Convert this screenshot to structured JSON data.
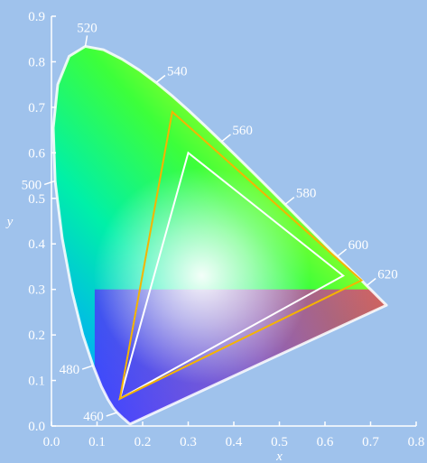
{
  "chart_data": {
    "type": "chromaticity-diagram",
    "xlabel": "x",
    "ylabel": "y",
    "xlim": [
      0.0,
      0.8
    ],
    "ylim": [
      0.0,
      0.9
    ],
    "x_ticks": [
      "0.0",
      "0.1",
      "0.2",
      "0.3",
      "0.4",
      "0.5",
      "0.6",
      "0.7",
      "0.8"
    ],
    "y_ticks": [
      "0.0",
      "0.1",
      "0.2",
      "0.3",
      "0.4",
      "0.5",
      "0.6",
      "0.7",
      "0.8",
      "0.9"
    ],
    "spectral_locus": [
      [
        0.1741,
        0.005
      ],
      [
        0.1738,
        0.0049
      ],
      [
        0.1736,
        0.0049
      ],
      [
        0.1733,
        0.0048
      ],
      [
        0.173,
        0.0048
      ],
      [
        0.1726,
        0.0048
      ],
      [
        0.1721,
        0.0048
      ],
      [
        0.1714,
        0.0051
      ],
      [
        0.1703,
        0.0058
      ],
      [
        0.1689,
        0.0069
      ],
      [
        0.1669,
        0.0086
      ],
      [
        0.1644,
        0.0109
      ],
      [
        0.1611,
        0.0138
      ],
      [
        0.1566,
        0.0177
      ],
      [
        0.151,
        0.0227
      ],
      [
        0.144,
        0.0297
      ],
      [
        0.1355,
        0.0399
      ],
      [
        0.1241,
        0.0578
      ],
      [
        0.1096,
        0.0868
      ],
      [
        0.0913,
        0.1327
      ],
      [
        0.0687,
        0.2007
      ],
      [
        0.0454,
        0.295
      ],
      [
        0.0235,
        0.4127
      ],
      [
        0.0082,
        0.5384
      ],
      [
        0.0039,
        0.6548
      ],
      [
        0.0139,
        0.7502
      ],
      [
        0.0389,
        0.812
      ],
      [
        0.0743,
        0.8338
      ],
      [
        0.1142,
        0.8262
      ],
      [
        0.1547,
        0.8059
      ],
      [
        0.1929,
        0.7816
      ],
      [
        0.2296,
        0.7543
      ],
      [
        0.2658,
        0.7243
      ],
      [
        0.3016,
        0.6923
      ],
      [
        0.3373,
        0.6589
      ],
      [
        0.3731,
        0.6245
      ],
      [
        0.4087,
        0.5896
      ],
      [
        0.4441,
        0.5547
      ],
      [
        0.4788,
        0.5202
      ],
      [
        0.5125,
        0.4866
      ],
      [
        0.5448,
        0.4544
      ],
      [
        0.5752,
        0.4242
      ],
      [
        0.6029,
        0.3965
      ],
      [
        0.627,
        0.3725
      ],
      [
        0.6482,
        0.3514
      ],
      [
        0.6658,
        0.334
      ],
      [
        0.6801,
        0.3197
      ],
      [
        0.6915,
        0.3083
      ],
      [
        0.7006,
        0.2993
      ],
      [
        0.7079,
        0.292
      ],
      [
        0.714,
        0.2859
      ],
      [
        0.719,
        0.2809
      ],
      [
        0.723,
        0.277
      ],
      [
        0.726,
        0.274
      ],
      [
        0.7283,
        0.2717
      ],
      [
        0.73,
        0.27
      ],
      [
        0.7311,
        0.2689
      ],
      [
        0.732,
        0.268
      ],
      [
        0.7327,
        0.2673
      ],
      [
        0.7334,
        0.2666
      ],
      [
        0.734,
        0.266
      ],
      [
        0.7344,
        0.2656
      ],
      [
        0.7346,
        0.2654
      ],
      [
        0.7347,
        0.2653
      ]
    ],
    "wavelength_labels": [
      {
        "label": "460",
        "x": 0.144,
        "y": 0.0297,
        "dir": "left"
      },
      {
        "label": "480",
        "x": 0.0913,
        "y": 0.1327,
        "dir": "left"
      },
      {
        "label": "500",
        "x": 0.0082,
        "y": 0.5384,
        "dir": "left"
      },
      {
        "label": "520",
        "x": 0.0743,
        "y": 0.8338,
        "dir": "up"
      },
      {
        "label": "540",
        "x": 0.2296,
        "y": 0.7543,
        "dir": "right"
      },
      {
        "label": "560",
        "x": 0.3731,
        "y": 0.6245,
        "dir": "right"
      },
      {
        "label": "580",
        "x": 0.5125,
        "y": 0.4866,
        "dir": "right"
      },
      {
        "label": "600",
        "x": 0.627,
        "y": 0.3725,
        "dir": "right"
      },
      {
        "label": "620",
        "x": 0.6915,
        "y": 0.3083,
        "dir": "right"
      }
    ],
    "series": [
      {
        "color": "#ffffff",
        "points": [
          [
            0.64,
            0.33
          ],
          [
            0.3,
            0.6
          ],
          [
            0.15,
            0.06
          ]
        ]
      },
      {
        "color": "#f5b400",
        "points": [
          [
            0.68,
            0.32
          ],
          [
            0.265,
            0.69
          ],
          [
            0.15,
            0.06
          ]
        ]
      }
    ],
    "grid": false
  }
}
